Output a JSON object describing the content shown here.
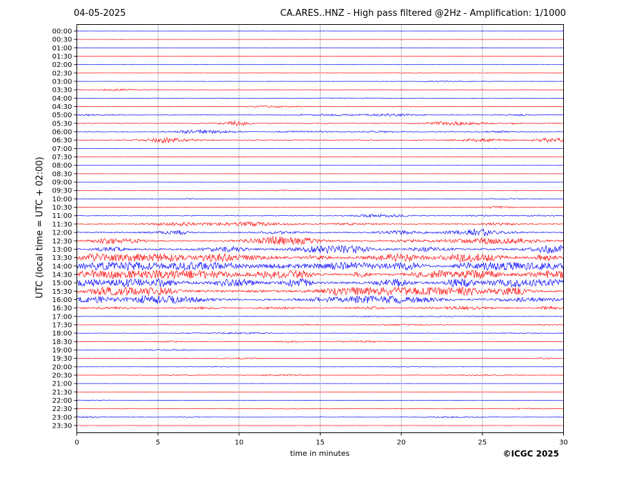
{
  "header": {
    "date": "04-05-2025",
    "title": "CA.ARES..HNZ - High pass filtered @2Hz - Amplification: 1/1000"
  },
  "footer": {
    "copyright": "©ICGC 2025"
  },
  "chart_data": {
    "type": "line",
    "title": "CA.ARES..HNZ - High pass filtered @2Hz - Amplification: 1/1000",
    "xlabel": "time in minutes",
    "ylabel": "UTC (local time = UTC + 02:00)",
    "xlim": [
      0,
      30
    ],
    "x_ticks": [
      0,
      5,
      10,
      15,
      20,
      25,
      30
    ],
    "grid": "vertical dotted lines every 5 minutes",
    "colors": {
      "odd_rows": "#ff0000",
      "even_rows": "#0000ff",
      "axis": "#000000"
    },
    "rows": [
      "00:00",
      "00:30",
      "01:00",
      "01:30",
      "02:00",
      "02:30",
      "03:00",
      "03:30",
      "04:00",
      "04:30",
      "05:00",
      "05:30",
      "06:00",
      "06:30",
      "07:00",
      "07:30",
      "08:00",
      "08:30",
      "09:00",
      "09:30",
      "10:00",
      "10:30",
      "11:00",
      "11:30",
      "12:00",
      "12:30",
      "13:00",
      "13:30",
      "14:00",
      "14:30",
      "15:00",
      "15:30",
      "16:00",
      "16:30",
      "17:00",
      "17:30",
      "18:00",
      "18:30",
      "19:00",
      "19:30",
      "20:00",
      "20:30",
      "21:00",
      "21:30",
      "22:00",
      "22:30",
      "23:00",
      "23:30"
    ],
    "row_activity": [
      0.2,
      0.1,
      0.2,
      0.3,
      0.2,
      0.3,
      0.6,
      0.5,
      0.5,
      0.8,
      1.3,
      1.7,
      1.6,
      1.8,
      0.4,
      0.2,
      0.2,
      0.2,
      0.2,
      0.6,
      0.6,
      0.9,
      1.3,
      1.9,
      2.3,
      2.6,
      3.6,
      4.4,
      4.8,
      4.9,
      4.5,
      4.7,
      3.8,
      2.1,
      0.9,
      0.8,
      0.8,
      0.8,
      0.7,
      0.7,
      0.5,
      0.8,
      0.3,
      0.3,
      0.5,
      0.6,
      0.8,
      0.2
    ]
  }
}
